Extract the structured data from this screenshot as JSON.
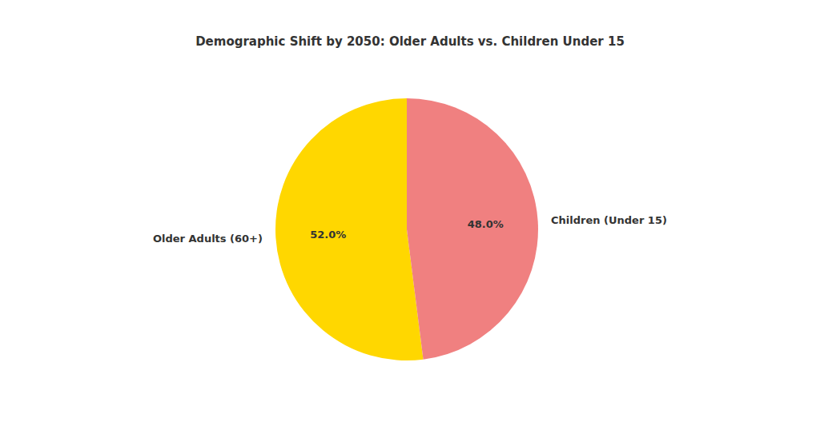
{
  "chart_data": {
    "type": "pie",
    "title": "Demographic Shift by 2050: Older Adults vs. Children Under 15",
    "categories": [
      "Older Adults (60+)",
      "Children (Under 15)"
    ],
    "values": [
      52.0,
      48.0
    ],
    "value_labels": [
      "52.0%",
      "48.0%"
    ],
    "colors": [
      "#FFD700",
      "#F08080"
    ],
    "data_labels": true
  }
}
